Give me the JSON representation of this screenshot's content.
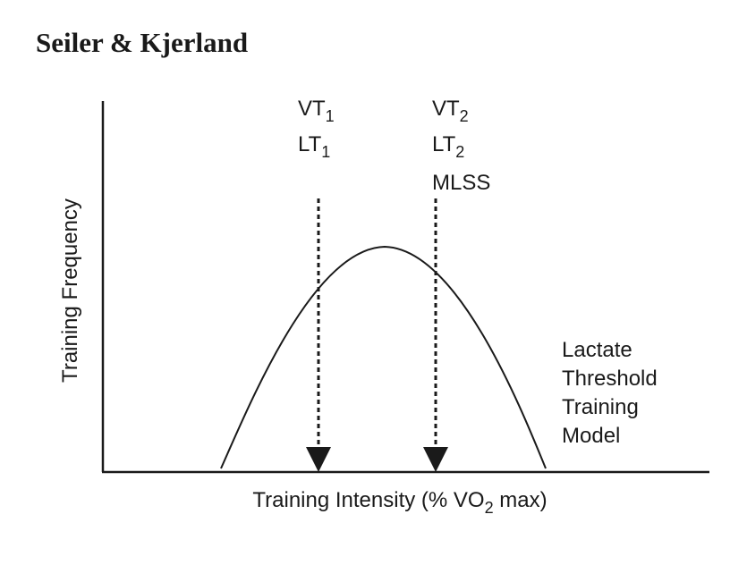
{
  "header": {
    "title": "Seiler & Kjerland"
  },
  "axes": {
    "y_label": "Training Frequency",
    "x_label_prefix": "Training Intensity (% VO",
    "x_label_sub": "2",
    "x_label_suffix": " max)"
  },
  "markers": [
    {
      "labels": [
        {
          "base": "VT",
          "sub": "1"
        },
        {
          "base": "LT",
          "sub": "1"
        }
      ]
    },
    {
      "labels": [
        {
          "base": "VT",
          "sub": "2"
        },
        {
          "base": "LT",
          "sub": "2"
        },
        {
          "base": "MLSS",
          "sub": ""
        }
      ]
    }
  ],
  "model_label": [
    "Lactate",
    "Threshold",
    "Training",
    "Model"
  ],
  "colors": {
    "ink": "#1a1a1a",
    "background": "#ffffff"
  }
}
